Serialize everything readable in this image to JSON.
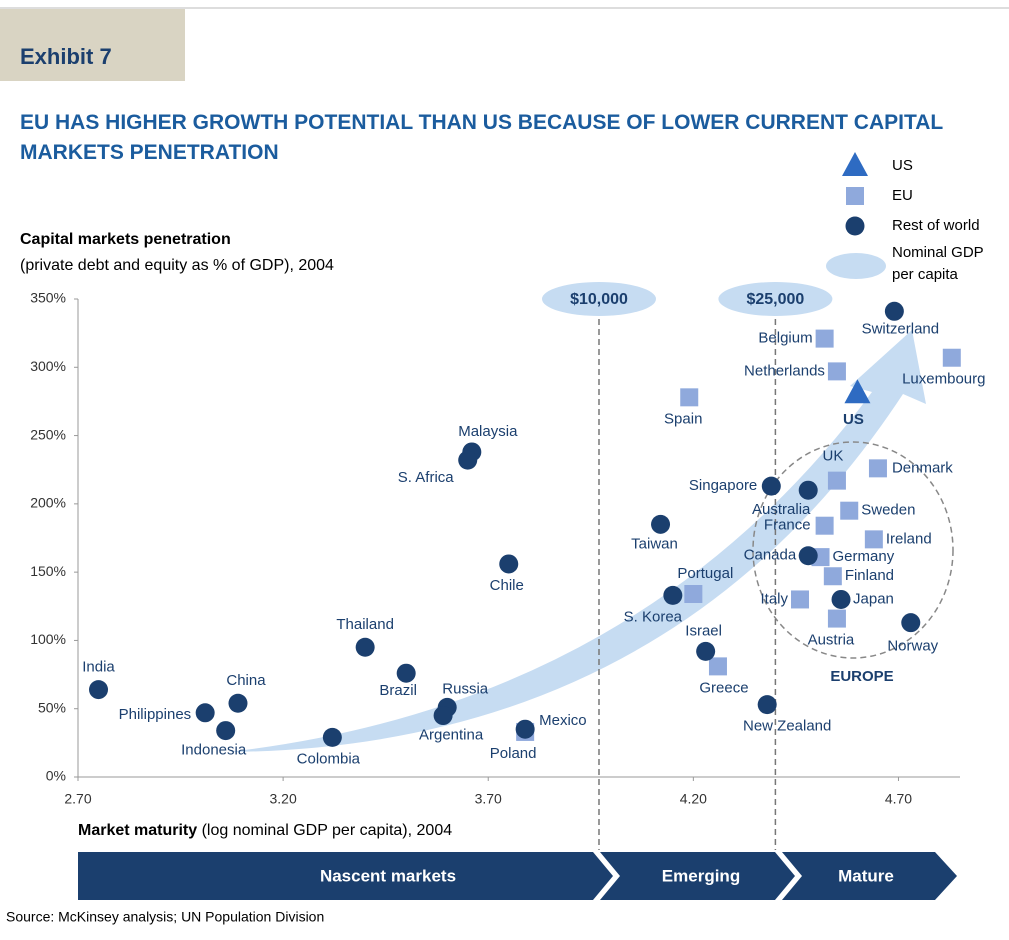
{
  "header": {
    "exhibit": "Exhibit 7"
  },
  "chart_data": {
    "type": "scatter",
    "title": "EU HAS HIGHER GROWTH POTENTIAL THAN US BECAUSE OF LOWER CURRENT CAPITAL MARKETS PENETRATION",
    "y_label": {
      "bold": "Capital markets penetration",
      "rest": "(private debt and equity as % of GDP), 2004"
    },
    "x_label": {
      "bold": "Market maturity",
      "rest": " (log nominal GDP per capita), 2004"
    },
    "xlim": [
      2.7,
      4.85
    ],
    "ylim": [
      0,
      350
    ],
    "xticks": [
      {
        "value": 2.7,
        "label": "2.70"
      },
      {
        "value": 3.2,
        "label": "3.20"
      },
      {
        "value": 3.7,
        "label": "3.70"
      },
      {
        "value": 4.2,
        "label": "4.20"
      },
      {
        "value": 4.7,
        "label": "4.70"
      }
    ],
    "yticks": [
      {
        "value": 0,
        "label": "0%"
      },
      {
        "value": 50,
        "label": "50%"
      },
      {
        "value": 100,
        "label": "100%"
      },
      {
        "value": 150,
        "label": "150%"
      },
      {
        "value": 200,
        "label": "200%"
      },
      {
        "value": 250,
        "label": "250%"
      },
      {
        "value": 300,
        "label": "300%"
      },
      {
        "value": 350,
        "label": "350%"
      }
    ],
    "series": [
      {
        "name": "US",
        "color": "#2e6bc2",
        "marker": "triangle",
        "labels": [
          "US"
        ],
        "x": [
          4.6
        ],
        "values": [
          281
        ]
      },
      {
        "name": "EU",
        "color": "#8fa9dc",
        "marker": "square",
        "labels": [
          "Spain",
          "Belgium",
          "Netherlands",
          "Luxembourg",
          "UK",
          "Denmark",
          "Sweden",
          "France",
          "Ireland",
          "Germany",
          "Finland",
          "Italy",
          "Austria",
          "Portugal",
          "Greece",
          "Poland"
        ],
        "x": [
          4.19,
          4.52,
          4.55,
          4.83,
          4.55,
          4.65,
          4.58,
          4.52,
          4.64,
          4.51,
          4.54,
          4.46,
          4.55,
          4.2,
          4.26,
          3.79
        ],
        "values": [
          278,
          321,
          297,
          307,
          217,
          226,
          195,
          184,
          174,
          161,
          147,
          130,
          116,
          134,
          81,
          33
        ]
      },
      {
        "name": "Rest of world",
        "color": "#1b3f6e",
        "marker": "circle",
        "labels": [
          "India",
          "Philippines",
          "China",
          "Indonesia",
          "Colombia",
          "Thailand",
          "Brazil",
          "Russia",
          "Argentina",
          "Mexico",
          "Malaysia",
          "S. Africa",
          "Chile",
          "Taiwan",
          "S. Korea",
          "Israel",
          "New Zealand",
          "Singapore",
          "Australia",
          "Canada",
          "Japan",
          "Norway",
          "Switzerland"
        ],
        "x": [
          2.75,
          3.01,
          3.09,
          3.06,
          3.32,
          3.4,
          3.5,
          3.6,
          3.59,
          3.79,
          3.66,
          3.65,
          3.75,
          4.12,
          4.15,
          4.23,
          4.38,
          4.39,
          4.48,
          4.48,
          4.56,
          4.73,
          4.69
        ],
        "values": [
          64,
          47,
          54,
          34,
          29,
          95,
          76,
          51,
          45,
          35,
          238,
          232,
          156,
          185,
          133,
          92,
          53,
          213,
          210,
          162,
          130,
          113,
          341
        ]
      }
    ],
    "legend_extra": {
      "label": [
        "Nominal GDP",
        "per capita"
      ]
    },
    "reference_lines": [
      {
        "x": 3.97,
        "label": "$10,000"
      },
      {
        "x": 4.4,
        "label": "$25,000"
      }
    ],
    "group_label": "EUROPE",
    "stages": [
      "Nascent markets",
      "Emerging",
      "Mature"
    ],
    "source": "Source:  McKinsey analysis; UN Population Division"
  }
}
